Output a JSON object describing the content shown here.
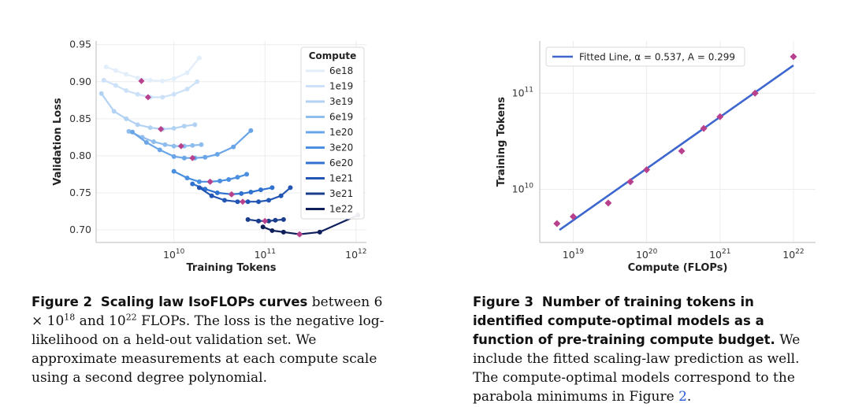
{
  "chart_data": [
    {
      "type": "line",
      "title": "",
      "xlabel": "Training Tokens",
      "ylabel": "Validation Loss",
      "xscale": "log",
      "xlim": [
        1400000000.0,
        1300000000000.0
      ],
      "ylim": [
        0.683,
        0.955
      ],
      "yticks": [
        "0.70",
        "0.75",
        "0.80",
        "0.85",
        "0.90",
        "0.95"
      ],
      "ytick_values": [
        0.7,
        0.75,
        0.8,
        0.85,
        0.9,
        0.95
      ],
      "xticks": [
        {
          "value": 10000000000.0,
          "base": "10",
          "exp": "10"
        },
        {
          "value": 100000000000.0,
          "base": "10",
          "exp": "11"
        },
        {
          "value": 1000000000000.0,
          "base": "10",
          "exp": "12"
        }
      ],
      "legend": {
        "title": "Compute",
        "placement": "top-right"
      },
      "series": [
        {
          "name": "6e18",
          "color": "#e3eefb",
          "min_x": 4400000000.0,
          "min_y": 0.901,
          "x": [
            1800000000.0,
            2300000000.0,
            3000000000.0,
            4000000000.0,
            5500000000.0,
            7500000000.0,
            10000000000.0,
            14000000000.0,
            19000000000.0
          ],
          "y": [
            0.92,
            0.915,
            0.91,
            0.905,
            0.902,
            0.901,
            0.904,
            0.912,
            0.932
          ]
        },
        {
          "name": "1e19",
          "color": "#cde2f8",
          "min_x": 5200000000.0,
          "min_y": 0.879,
          "x": [
            1700000000.0,
            2300000000.0,
            3000000000.0,
            4000000000.0,
            5500000000.0,
            7500000000.0,
            10000000000.0,
            14000000000.0,
            18000000000.0
          ],
          "y": [
            0.902,
            0.895,
            0.888,
            0.883,
            0.879,
            0.879,
            0.883,
            0.89,
            0.9
          ]
        },
        {
          "name": "3e19",
          "color": "#b2d2f3",
          "min_x": 7200000000.0,
          "min_y": 0.836,
          "x": [
            1600000000.0,
            2200000000.0,
            3000000000.0,
            4000000000.0,
            5500000000.0,
            7500000000.0,
            10000000000.0,
            13000000000.0,
            17000000000.0
          ],
          "y": [
            0.884,
            0.86,
            0.85,
            0.842,
            0.838,
            0.836,
            0.837,
            0.84,
            0.842
          ]
        },
        {
          "name": "6e19",
          "color": "#8fbdee",
          "min_x": 12000000000.0,
          "min_y": 0.813,
          "x": [
            3200000000.0,
            4500000000.0,
            6000000000.0,
            8000000000.0,
            10000000000.0,
            13000000000.0,
            16000000000.0,
            20000000000.0
          ],
          "y": [
            0.833,
            0.825,
            0.819,
            0.815,
            0.813,
            0.813,
            0.814,
            0.815
          ]
        },
        {
          "name": "1e20",
          "color": "#6aa5e8",
          "min_x": 16000000000.0,
          "min_y": 0.797,
          "x": [
            3500000000.0,
            5000000000.0,
            7000000000.0,
            10000000000.0,
            13000000000.0,
            17000000000.0,
            22000000000.0,
            30000000000.0,
            45000000000.0,
            70000000000.0
          ],
          "y": [
            0.832,
            0.818,
            0.808,
            0.799,
            0.797,
            0.797,
            0.798,
            0.802,
            0.812,
            0.834
          ]
        },
        {
          "name": "3e20",
          "color": "#4a8fe0",
          "min_x": 25000000000.0,
          "min_y": 0.765,
          "x": [
            10000000000.0,
            14000000000.0,
            19000000000.0,
            25000000000.0,
            32000000000.0,
            40000000000.0,
            50000000000.0,
            63000000000.0
          ],
          "y": [
            0.779,
            0.77,
            0.765,
            0.765,
            0.766,
            0.768,
            0.771,
            0.775
          ]
        },
        {
          "name": "6e20",
          "color": "#2f72d0",
          "min_x": 43000000000.0,
          "min_y": 0.748,
          "x": [
            16000000000.0,
            22000000000.0,
            30000000000.0,
            43000000000.0,
            55000000000.0,
            70000000000.0,
            90000000000.0,
            120000000000.0
          ],
          "y": [
            0.762,
            0.755,
            0.75,
            0.748,
            0.749,
            0.751,
            0.754,
            0.757
          ]
        },
        {
          "name": "1e21",
          "color": "#2356b4",
          "min_x": 57000000000.0,
          "min_y": 0.738,
          "x": [
            19000000000.0,
            26000000000.0,
            36000000000.0,
            50000000000.0,
            65000000000.0,
            85000000000.0,
            110000000000.0,
            150000000000.0,
            190000000000.0
          ],
          "y": [
            0.757,
            0.746,
            0.74,
            0.738,
            0.738,
            0.738,
            0.74,
            0.746,
            0.757
          ]
        },
        {
          "name": "3e21",
          "color": "#1a3d8c",
          "min_x": 100000000000.0,
          "min_y": 0.712,
          "x": [
            65000000000.0,
            85000000000.0,
            110000000000.0,
            130000000000.0,
            160000000000.0
          ],
          "y": [
            0.714,
            0.712,
            0.712,
            0.713,
            0.714
          ]
        },
        {
          "name": "1e22",
          "color": "#0f1f5c",
          "min_x": 240000000000.0,
          "min_y": 0.694,
          "x": [
            95000000000.0,
            120000000000.0,
            160000000000.0,
            240000000000.0,
            400000000000.0,
            1050000000000.0
          ],
          "y": [
            0.704,
            0.699,
            0.697,
            0.694,
            0.697,
            0.72
          ]
        }
      ]
    },
    {
      "type": "scatter",
      "title": "",
      "xlabel": "Compute (FLOPs)",
      "ylabel": "Training Tokens",
      "xscale": "log",
      "yscale": "log",
      "xlim": [
        3.5e+18,
        2e+22
      ],
      "ylim": [
        2800000000.0,
        350000000000.0
      ],
      "xticks": [
        {
          "value": 1e+19,
          "base": "10",
          "exp": "19"
        },
        {
          "value": 1e+20,
          "base": "10",
          "exp": "20"
        },
        {
          "value": 1e+21,
          "base": "10",
          "exp": "21"
        },
        {
          "value": 1e+22,
          "base": "10",
          "exp": "22"
        }
      ],
      "yticks": [
        {
          "value": 10000000000.0,
          "base": "10",
          "exp": "10"
        },
        {
          "value": 100000000000.0,
          "base": "10",
          "exp": "11"
        }
      ],
      "legend": {
        "label": "Fitted Line, α = 0.537, A = 0.299",
        "placement": "top-left"
      },
      "fit": {
        "alpha": 0.537,
        "A": 0.299,
        "x_range": [
          6.5e+18,
          1e+22
        ],
        "color": "#3d67cf"
      },
      "points": {
        "color": "#b8418e",
        "x": [
          6e+18,
          1e+19,
          3e+19,
          6e+19,
          1e+20,
          3e+20,
          6e+20,
          1e+21,
          3e+21,
          1e+22
        ],
        "y": [
          4400000000.0,
          5200000000.0,
          7200000000.0,
          12000000000.0,
          16000000000.0,
          25000000000.0,
          43000000000.0,
          57000000000.0,
          100000000000.0,
          240000000000.0
        ]
      }
    }
  ],
  "captions": {
    "left": {
      "label": "Figure 2",
      "title": "Scaling law IsoFLOPs curves",
      "text_a": " between 6 × 10",
      "sup_a": "18",
      "text_b": " and 10",
      "sup_b": "22",
      "text_c": " FLOPs.  The loss is the negative log-likelihood on a held-out validation set. We approximate measurements at each compute scale using a second degree polynomial."
    },
    "right": {
      "label": "Figure 3",
      "title": "Number of training tokens in identified compute-optimal models as a function of pre-training compute budget.",
      "text_a": " We include the fitted scaling-law prediction as well. The compute-optimal models correspond to the parabola minimums in Figure ",
      "ref": "2",
      "text_b": "."
    }
  }
}
